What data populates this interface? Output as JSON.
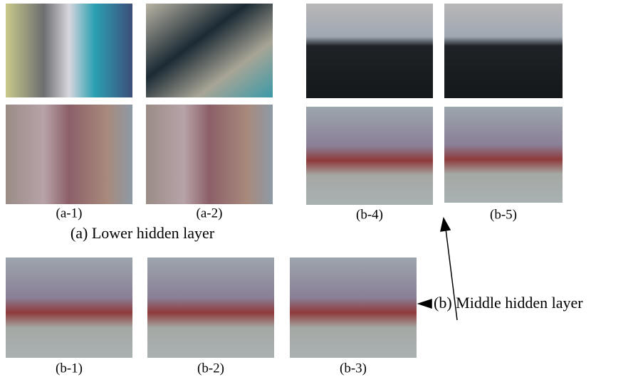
{
  "panels": [
    {
      "label": "(a-1)"
    },
    {
      "label": "(a-2)"
    },
    {
      "label": "(b-4)"
    },
    {
      "label": "(b-5)"
    },
    {
      "label": "(b-1)"
    },
    {
      "label": "(b-2)"
    },
    {
      "label": "(b-3)"
    }
  ],
  "captions": {
    "lower": "(a) Lower hidden layer",
    "middle": "(b) Middle hidden layer"
  }
}
